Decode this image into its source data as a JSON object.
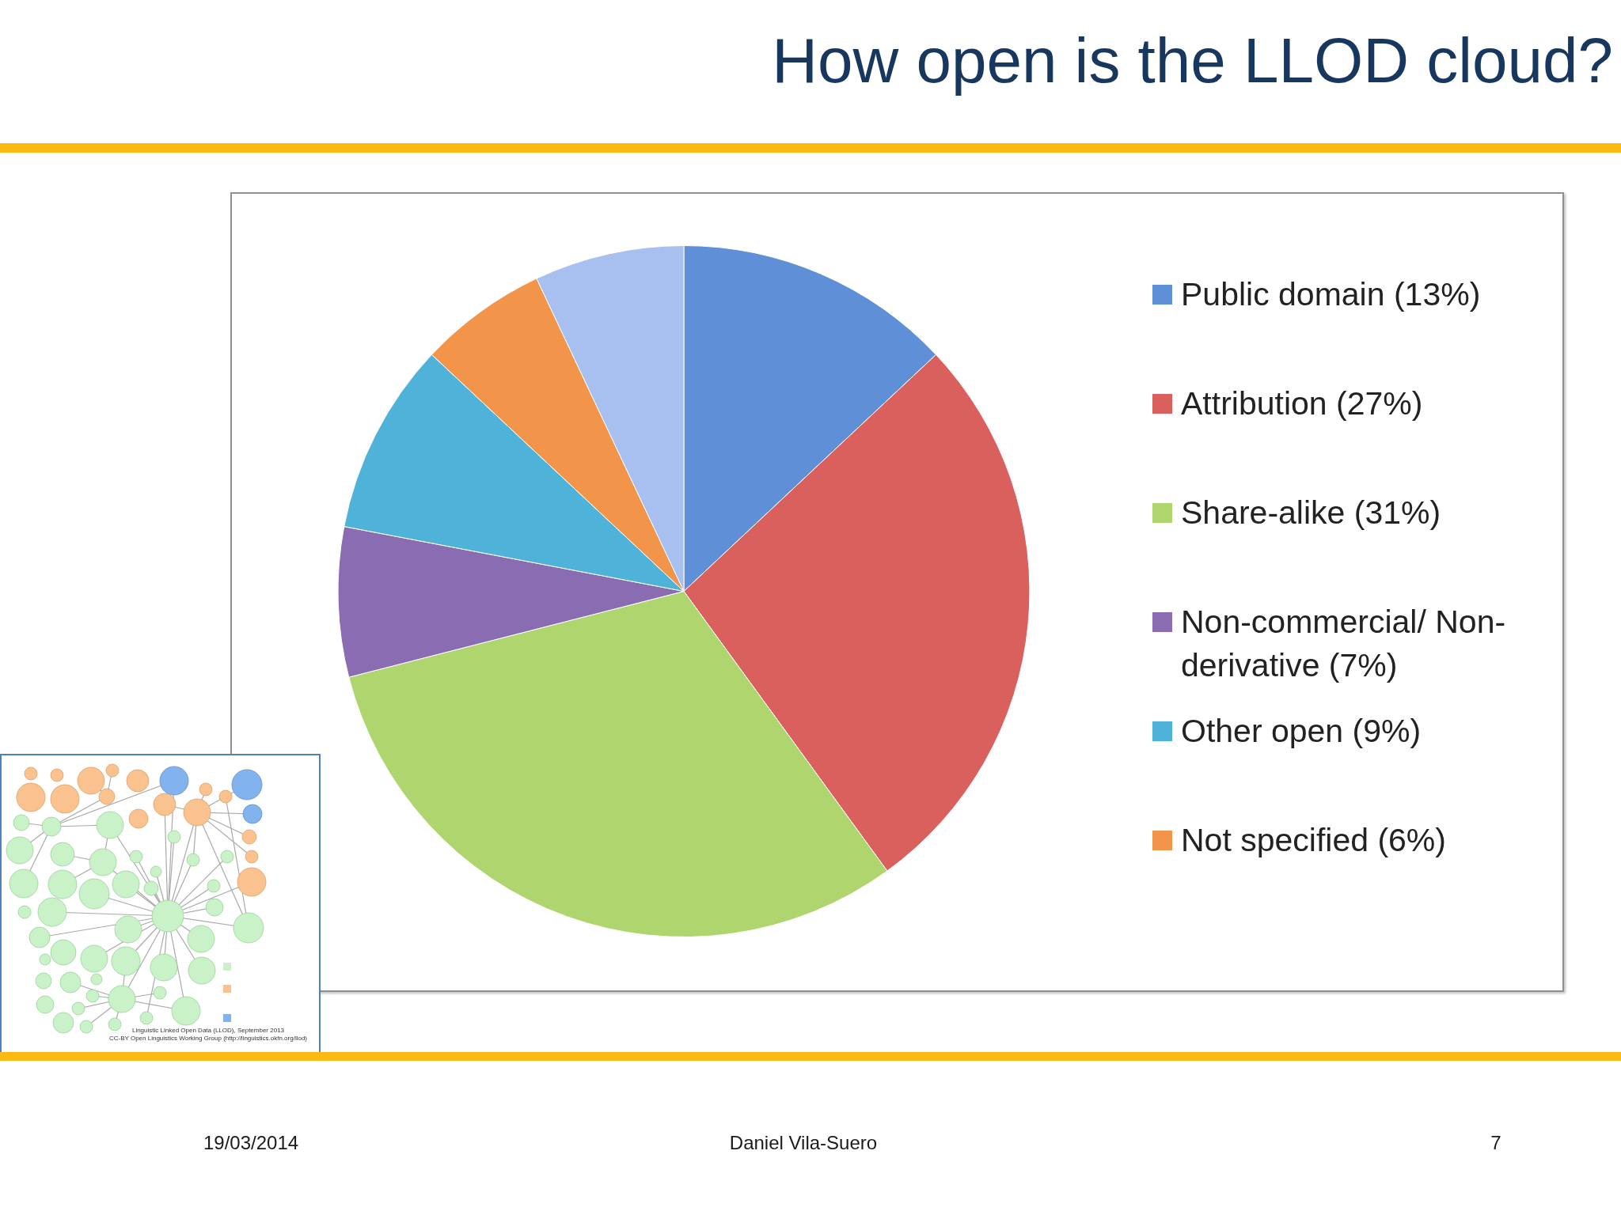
{
  "chart_data": {
    "type": "pie",
    "title": "How open is the LLOD cloud?",
    "categories": [
      "Public domain (13%)",
      "Attribution (27%)",
      "Share-alike (31%)",
      "Non-commercial/ Non-derivative (7%)",
      "Other open (9%)",
      "Not specified (6%)",
      null
    ],
    "values": [
      13,
      27,
      31,
      7,
      9,
      6,
      7
    ],
    "colors": [
      "#5f8fd6",
      "#d9605d",
      "#aed56e",
      "#8a6cb3",
      "#4fb2d8",
      "#f2944a",
      "#a7c0f0"
    ],
    "legend": "right",
    "annotations": [
      "Linguistic Linked Open Data (LLOD), September 2013",
      "CC-BY Open Linguistics Working Group (http://linguistics.okfn.org/llod)",
      "19/03/2014",
      "Daniel Vila-Suero",
      "7"
    ]
  }
}
